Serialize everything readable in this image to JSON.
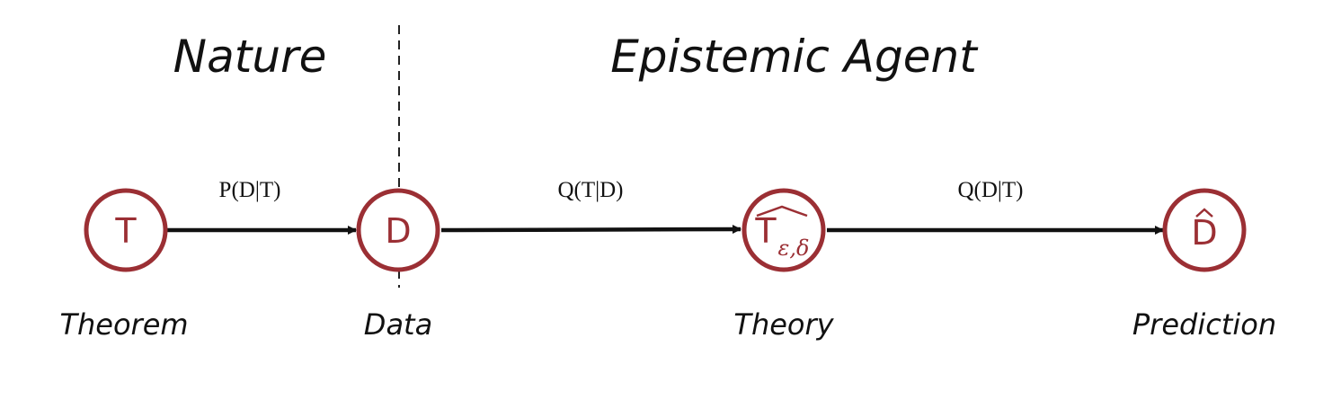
{
  "regions": {
    "nature_title": "Nature",
    "agent_title": "Epistemic Agent"
  },
  "nodes": [
    {
      "id": "T",
      "symbol": "T",
      "caption": "Theorem"
    },
    {
      "id": "D",
      "symbol": "D",
      "caption": "Data"
    },
    {
      "id": "T_hat",
      "symbol": "T",
      "subscript": "ε,δ",
      "caption": "Theory"
    },
    {
      "id": "D_hat",
      "symbol": "D",
      "caption": "Prediction"
    }
  ],
  "edges": [
    {
      "from": "T",
      "to": "D",
      "label": "P(D|T)"
    },
    {
      "from": "D",
      "to": "T_hat",
      "label": "Q(T|D)"
    },
    {
      "from": "T_hat",
      "to": "D_hat",
      "label": "Q(D|T)"
    }
  ],
  "colors": {
    "node_stroke": "#9b2f34",
    "node_text": "#9b2f34",
    "edge": "#111111"
  }
}
